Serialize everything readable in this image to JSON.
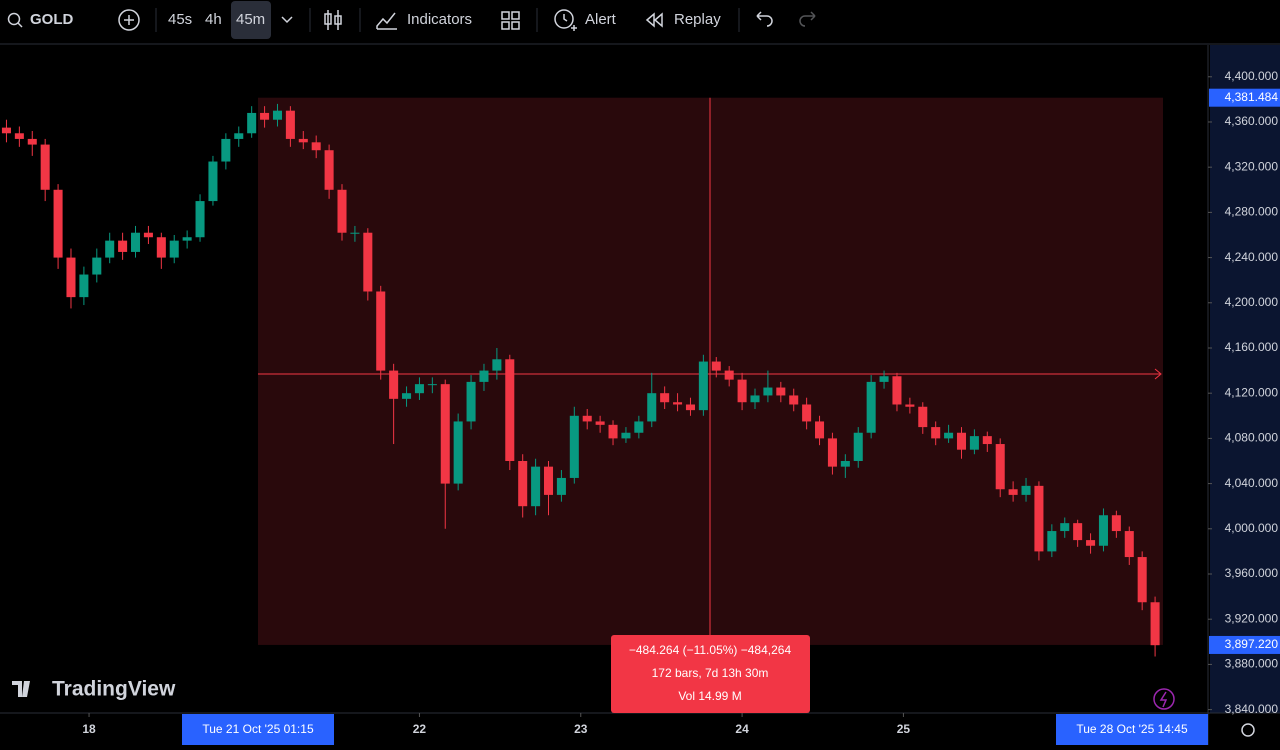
{
  "toolbar": {
    "symbol": "GOLD",
    "intervals": [
      "45s",
      "4h",
      "45m"
    ],
    "indicators": "Indicators",
    "alert": "Alert",
    "replay": "Replay"
  },
  "watermark": "TradingView",
  "chart_data": {
    "type": "candlestick",
    "colors": {
      "up": "#089981",
      "down": "#f23645"
    },
    "xlim": [
      -0.5,
      93.1
    ],
    "ylim": [
      3837,
      4429
    ],
    "xticks": [
      {
        "value": 6.4,
        "label": "18"
      },
      {
        "value": 32,
        "label": "22"
      },
      {
        "value": 44.5,
        "label": "23"
      },
      {
        "value": 57,
        "label": "24"
      },
      {
        "value": 69.5,
        "label": "25"
      }
    ],
    "yticks": [
      {
        "value": 4400,
        "label": "4,400.000"
      },
      {
        "value": 4360,
        "label": "4,360.000"
      },
      {
        "value": 4320,
        "label": "4,320.000"
      },
      {
        "value": 4280,
        "label": "4,280.000"
      },
      {
        "value": 4240,
        "label": "4,240.000"
      },
      {
        "value": 4200,
        "label": "4,200.000"
      },
      {
        "value": 4160,
        "label": "4,160.000"
      },
      {
        "value": 4120,
        "label": "4,120.000"
      },
      {
        "value": 4080,
        "label": "4,080.000"
      },
      {
        "value": 4040,
        "label": "4,040.000"
      },
      {
        "value": 4000,
        "label": "4,000.000"
      },
      {
        "value": 3960,
        "label": "3,960.000"
      },
      {
        "value": 3920,
        "label": "3,920.000"
      },
      {
        "value": 3880,
        "label": "3,880.000"
      },
      {
        "value": 3840,
        "label": "3,840.000"
      }
    ],
    "range": {
      "high": {
        "value": 4381.484,
        "label": "4,381.484"
      },
      "low": {
        "value": 3897.22,
        "label": "3,897.220"
      },
      "start_label": "Tue 21 Oct '25   01:15",
      "end_label": "Tue 28 Oct '25   14:45",
      "stats": [
        "−484.264 (−11.05%) −484,264",
        "172 bars, 7d 13h 30m",
        "Vol 14.99 M"
      ]
    },
    "candles": [
      [
        4355,
        4362,
        4342,
        4350
      ],
      [
        4350,
        4356,
        4338,
        4345
      ],
      [
        4345,
        4352,
        4330,
        4340
      ],
      [
        4340,
        4345,
        4290,
        4300
      ],
      [
        4300,
        4305,
        4230,
        4240
      ],
      [
        4240,
        4248,
        4195,
        4205
      ],
      [
        4205,
        4232,
        4198,
        4225
      ],
      [
        4225,
        4248,
        4218,
        4240
      ],
      [
        4240,
        4262,
        4235,
        4255
      ],
      [
        4255,
        4262,
        4238,
        4245
      ],
      [
        4245,
        4268,
        4240,
        4262
      ],
      [
        4262,
        4268,
        4252,
        4258
      ],
      [
        4258,
        4262,
        4230,
        4240
      ],
      [
        4240,
        4260,
        4235,
        4255
      ],
      [
        4255,
        4264,
        4248,
        4258
      ],
      [
        4258,
        4296,
        4254,
        4290
      ],
      [
        4290,
        4330,
        4286,
        4325
      ],
      [
        4325,
        4350,
        4318,
        4345
      ],
      [
        4345,
        4356,
        4338,
        4350
      ],
      [
        4350,
        4374,
        4346,
        4368
      ],
      [
        4368,
        4374,
        4355,
        4362
      ],
      [
        4362,
        4376,
        4356,
        4370
      ],
      [
        4370,
        4374,
        4338,
        4345
      ],
      [
        4345,
        4352,
        4336,
        4342
      ],
      [
        4342,
        4348,
        4328,
        4335
      ],
      [
        4335,
        4340,
        4292,
        4300
      ],
      [
        4300,
        4305,
        4255,
        4262
      ],
      [
        4262,
        4268,
        4254,
        4262
      ],
      [
        4262,
        4266,
        4202,
        4210
      ],
      [
        4210,
        4215,
        4132,
        4140
      ],
      [
        4140,
        4146,
        4075,
        4115
      ],
      [
        4115,
        4126,
        4108,
        4120
      ],
      [
        4120,
        4134,
        4114,
        4128
      ],
      [
        4128,
        4134,
        4120,
        4128
      ],
      [
        4128,
        4132,
        4000,
        4040
      ],
      [
        4040,
        4102,
        4034,
        4095
      ],
      [
        4095,
        4136,
        4088,
        4130
      ],
      [
        4130,
        4146,
        4122,
        4140
      ],
      [
        4140,
        4160,
        4132,
        4150
      ],
      [
        4150,
        4154,
        4052,
        4060
      ],
      [
        4060,
        4066,
        4010,
        4020
      ],
      [
        4020,
        4062,
        4012,
        4055
      ],
      [
        4055,
        4060,
        4012,
        4030
      ],
      [
        4030,
        4052,
        4024,
        4045
      ],
      [
        4045,
        4108,
        4040,
        4100
      ],
      [
        4100,
        4106,
        4088,
        4095
      ],
      [
        4095,
        4100,
        4085,
        4092
      ],
      [
        4092,
        4096,
        4074,
        4080
      ],
      [
        4080,
        4090,
        4076,
        4085
      ],
      [
        4085,
        4100,
        4080,
        4095
      ],
      [
        4095,
        4138,
        4090,
        4120
      ],
      [
        4120,
        4126,
        4106,
        4112
      ],
      [
        4112,
        4120,
        4104,
        4110
      ],
      [
        4110,
        4116,
        4100,
        4105
      ],
      [
        4105,
        4154,
        4100,
        4148
      ],
      [
        4148,
        4152,
        4134,
        4140
      ],
      [
        4140,
        4144,
        4126,
        4132
      ],
      [
        4132,
        4138,
        4105,
        4112
      ],
      [
        4112,
        4124,
        4106,
        4118
      ],
      [
        4118,
        4140,
        4112,
        4125
      ],
      [
        4125,
        4130,
        4112,
        4118
      ],
      [
        4118,
        4124,
        4104,
        4110
      ],
      [
        4110,
        4116,
        4088,
        4095
      ],
      [
        4095,
        4100,
        4074,
        4080
      ],
      [
        4080,
        4085,
        4048,
        4055
      ],
      [
        4055,
        4066,
        4045,
        4060
      ],
      [
        4060,
        4090,
        4054,
        4085
      ],
      [
        4085,
        4136,
        4080,
        4130
      ],
      [
        4130,
        4140,
        4124,
        4135
      ],
      [
        4135,
        4138,
        4104,
        4110
      ],
      [
        4110,
        4116,
        4102,
        4108
      ],
      [
        4108,
        4112,
        4084,
        4090
      ],
      [
        4090,
        4095,
        4074,
        4080
      ],
      [
        4080,
        4092,
        4076,
        4085
      ],
      [
        4085,
        4090,
        4062,
        4070
      ],
      [
        4070,
        4088,
        4066,
        4082
      ],
      [
        4082,
        4086,
        4068,
        4075
      ],
      [
        4075,
        4080,
        4028,
        4035
      ],
      [
        4035,
        4042,
        4024,
        4030
      ],
      [
        4030,
        4045,
        4024,
        4038
      ],
      [
        4038,
        4042,
        3972,
        3980
      ],
      [
        3980,
        4004,
        3975,
        3998
      ],
      [
        3998,
        4010,
        3992,
        4005
      ],
      [
        4005,
        4008,
        3984,
        3990
      ],
      [
        3990,
        3996,
        3978,
        3985
      ],
      [
        3985,
        4018,
        3980,
        4012
      ],
      [
        4012,
        4016,
        3992,
        3998
      ],
      [
        3998,
        4002,
        3968,
        3975
      ],
      [
        3975,
        3980,
        3928,
        3935
      ],
      [
        3935,
        3940,
        3887,
        3897
      ]
    ]
  }
}
